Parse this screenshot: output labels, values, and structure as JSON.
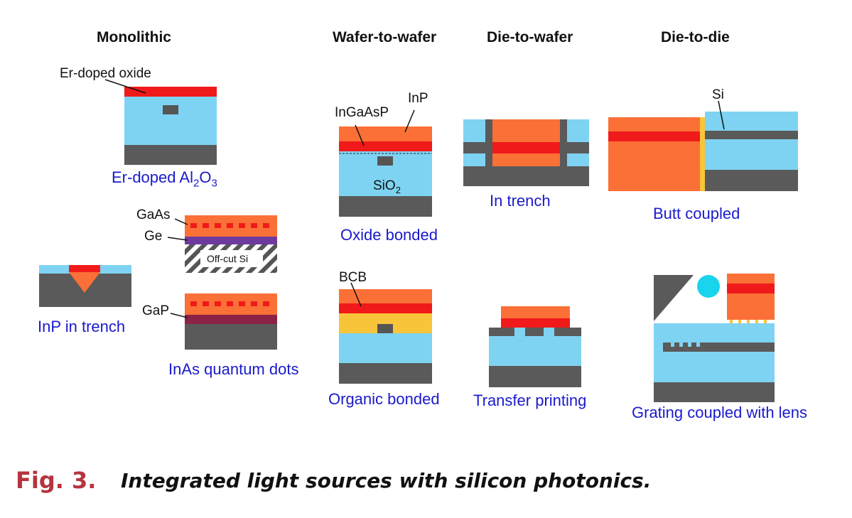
{
  "headers": {
    "monolithic": "Monolithic",
    "wafer_to_wafer": "Wafer-to-wafer",
    "die_to_wafer": "Die-to-wafer",
    "die_to_die": "Die-to-die"
  },
  "labels": {
    "er_doped_oxide": "Er-doped oxide",
    "gaas": "GaAs",
    "ge": "Ge",
    "off_cut_si": "Off-cut Si",
    "gap": "GaP",
    "ingaasp": "InGaAsP",
    "inp": "InP",
    "sio2": "SiO",
    "sio2_sub": "2",
    "bcb": "BCB",
    "si": "Si"
  },
  "captions": {
    "er_doped_prefix": "Er-doped Al",
    "er_doped_sub1": "2",
    "er_doped_mid": "O",
    "er_doped_sub2": "3",
    "inp_in_trench": "InP in trench",
    "inas_quantum_dots": "InAs quantum dots",
    "oxide_bonded": "Oxide bonded",
    "organic_bonded": "Organic bonded",
    "in_trench": "In trench",
    "transfer_printing": "Transfer printing",
    "butt_coupled": "Butt coupled",
    "grating_coupled": "Grating coupled with lens"
  },
  "figure": {
    "label": "Fig. 3.",
    "title": "Integrated light sources with silicon photonics."
  },
  "colors": {
    "oxide": "#7fd3f2",
    "substrate": "#5a5a5a",
    "laser_red": "#f01a1a",
    "iii_v_orange": "#fb7036",
    "bcb_yellow": "#f8c53a",
    "ge_purple": "#6e3a9e",
    "gap_maroon": "#8c2346",
    "lens_cyan": "#1ad3ec",
    "caption_blue": "#1a1acc",
    "fig_red": "#b5343f"
  }
}
